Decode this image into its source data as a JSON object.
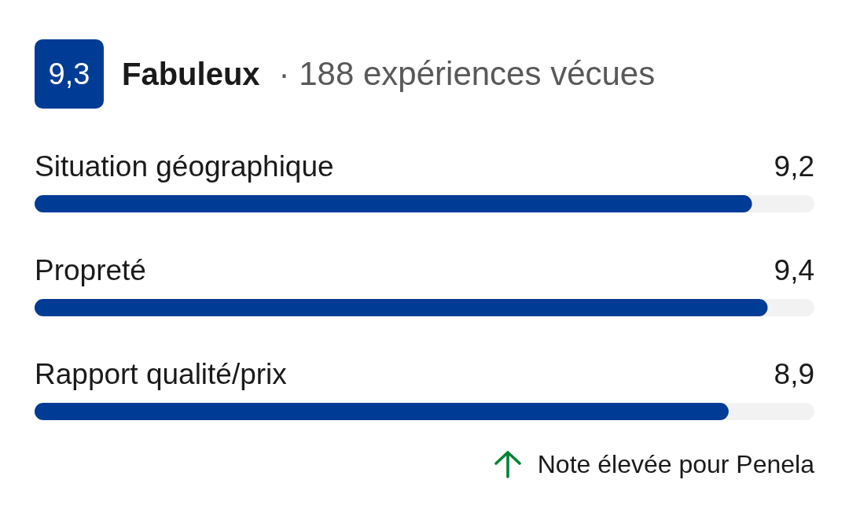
{
  "chart_data": {
    "type": "bar",
    "orientation": "horizontal",
    "title": "Fabuleux",
    "subtitle": "· 188 expériences vécues",
    "annotations": [
      "9,3",
      "Note élevée pour Penela"
    ],
    "categories": [
      "Situation géographique",
      "Propreté",
      "Rapport qualité/prix"
    ],
    "values": [
      9.2,
      9.4,
      8.9
    ],
    "value_labels": [
      "9,2",
      "9,4",
      "8,9"
    ],
    "color": "#003b95",
    "xlim": [
      0,
      10
    ],
    "tick_labels": "y"
  }
}
